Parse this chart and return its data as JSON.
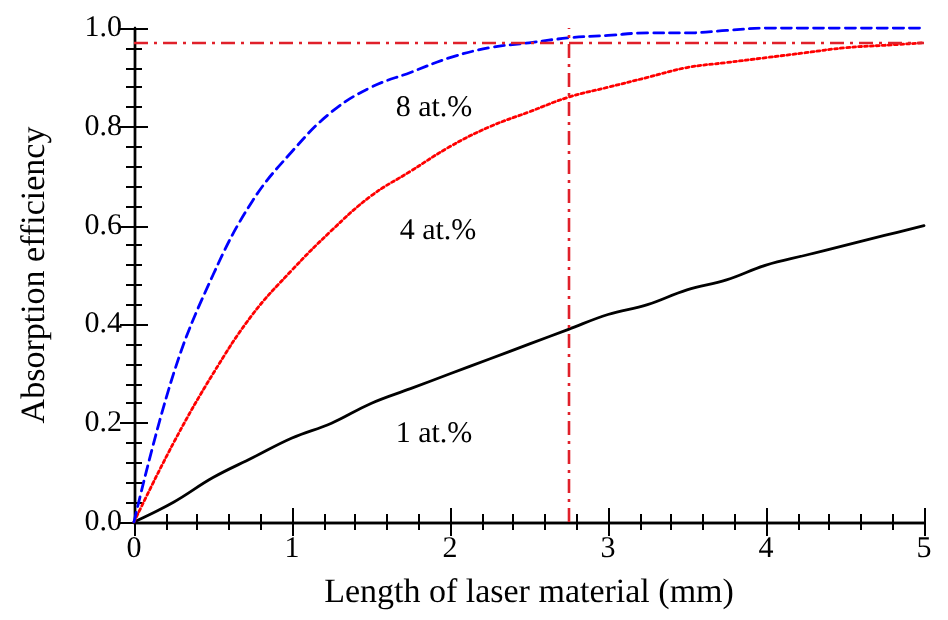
{
  "chart_data": {
    "type": "line",
    "xlabel": "Length of laser material (mm)",
    "ylabel": "Absorption efficiency",
    "x": [
      0,
      0.25,
      0.5,
      0.75,
      1,
      1.25,
      1.5,
      1.75,
      2,
      2.25,
      2.5,
      2.75,
      3,
      3.25,
      3.5,
      3.75,
      4,
      4.25,
      4.5,
      4.75,
      5
    ],
    "series": [
      {
        "name": "1 at.%",
        "color": "#000000",
        "line_style": "solid",
        "values": [
          0,
          0.04,
          0.09,
          0.13,
          0.17,
          0.2,
          0.24,
          0.27,
          0.3,
          0.33,
          0.36,
          0.39,
          0.42,
          0.44,
          0.47,
          0.49,
          0.52,
          0.54,
          0.56,
          0.58,
          0.6
        ]
      },
      {
        "name": "4 at.%",
        "color": "#ff0000",
        "line_style": "dotted",
        "values": [
          0,
          0.16,
          0.3,
          0.42,
          0.51,
          0.59,
          0.66,
          0.71,
          0.76,
          0.8,
          0.83,
          0.86,
          0.88,
          0.9,
          0.92,
          0.93,
          0.94,
          0.95,
          0.96,
          0.965,
          0.97
        ]
      },
      {
        "name": "8 at.%",
        "color": "#0000ff",
        "line_style": "dashed",
        "values": [
          0,
          0.3,
          0.5,
          0.65,
          0.75,
          0.83,
          0.88,
          0.91,
          0.94,
          0.96,
          0.97,
          0.98,
          0.985,
          0.99,
          0.99,
          0.995,
          1.0,
          1.0,
          1.0,
          1.0,
          1.0
        ]
      }
    ],
    "xlim": [
      0,
      5
    ],
    "xticks": [
      0,
      1,
      2,
      3,
      4,
      5
    ],
    "ylim": [
      0,
      1
    ],
    "yticks": [
      {
        "value": 0,
        "label": "0.0"
      },
      {
        "value": 0.2,
        "label": "0.2"
      },
      {
        "value": 0.4,
        "label": "0.4"
      },
      {
        "value": 0.6,
        "label": "0.6"
      },
      {
        "value": 0.8,
        "label": "0.8"
      },
      {
        "value": 1,
        "label": "1.0"
      }
    ],
    "ref_lines": [
      {
        "axis": "y",
        "value": 0.975,
        "color": "#e0202a",
        "line_style": "dashdot"
      },
      {
        "axis": "x",
        "value": 2.75,
        "color": "#e0202a",
        "line_style": "dashdot"
      }
    ],
    "grid": false,
    "legend": false,
    "marker": "none"
  }
}
